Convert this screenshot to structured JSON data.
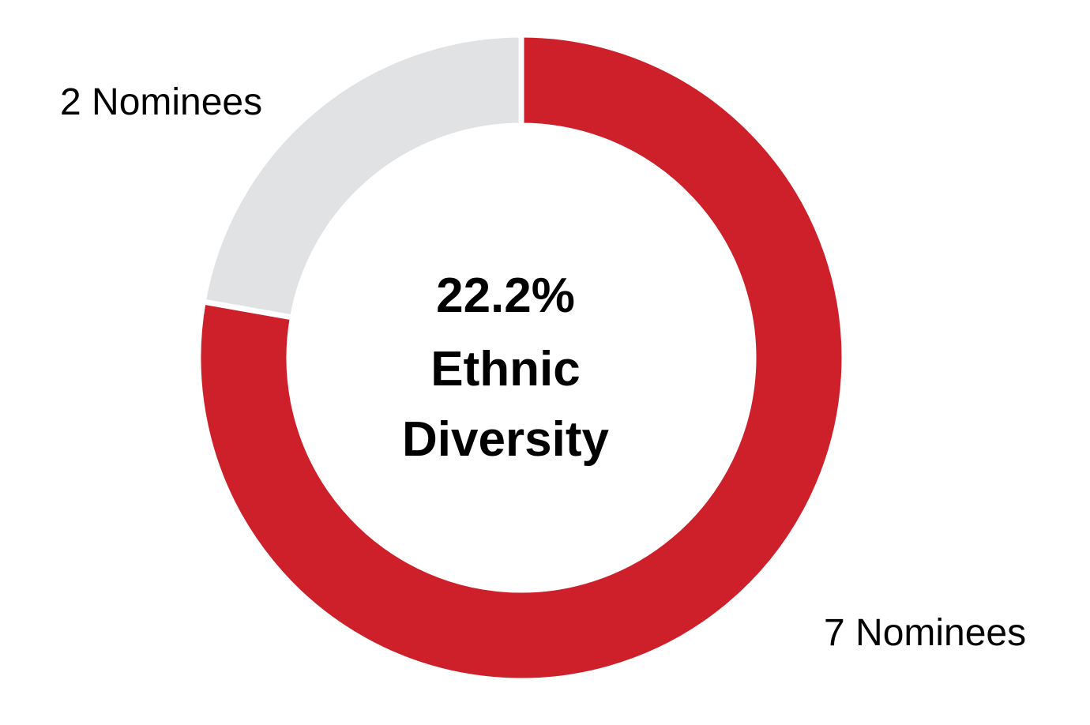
{
  "chart_data": {
    "type": "pie",
    "variant": "donut",
    "slices": [
      {
        "label": "2 Nominees",
        "value": 2,
        "color": "#E1E2E4"
      },
      {
        "label": "7 Nominees",
        "value": 7,
        "color": "#CE202A"
      }
    ],
    "center_text": {
      "line1": "22.2%",
      "line2": "Ethnic",
      "line3": "Diversity"
    },
    "legend": "none"
  }
}
